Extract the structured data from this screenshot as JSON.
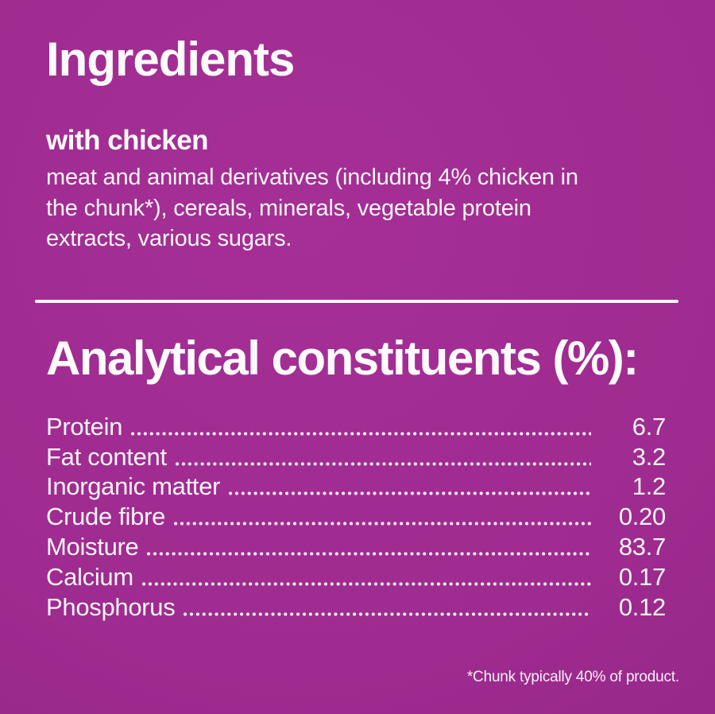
{
  "theme": {
    "background": "#9E2B8F",
    "background_dark": "#8D2381",
    "background_light": "#A52F96",
    "text": "#FBF5FA"
  },
  "ingredients_section": {
    "title": "Ingredients",
    "subtitle": "with chicken",
    "description_lines": [
      "meat and animal derivatives (including 4% chicken in",
      "the chunk*), cereals, minerals, vegetable protein",
      "extracts, various sugars."
    ]
  },
  "analytical_section": {
    "title": "Analytical constituents (%):",
    "rows": [
      {
        "label": "Protein",
        "value": "6.7"
      },
      {
        "label": "Fat content",
        "value": "3.2"
      },
      {
        "label": "Inorganic matter",
        "value": "1.2"
      },
      {
        "label": "Crude fibre",
        "value": "0.20"
      },
      {
        "label": "Moisture",
        "value": "83.7"
      },
      {
        "label": "Calcium",
        "value": "0.17"
      },
      {
        "label": "Phosphorus",
        "value": "0.12"
      }
    ]
  },
  "footnote": "*Chunk typically 40% of product."
}
